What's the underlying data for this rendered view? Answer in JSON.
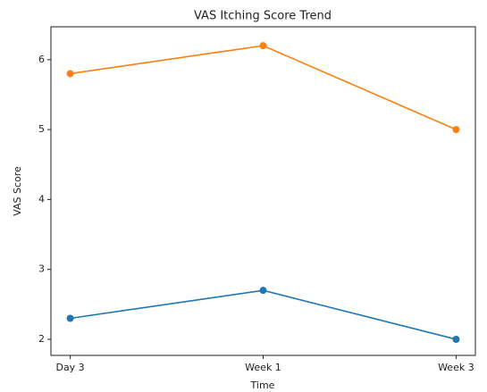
{
  "chart_data": {
    "type": "line",
    "title": "VAS Itching Score Trend",
    "x_label": "Time",
    "y_label": "VAS Score",
    "categories": [
      "Day 3",
      "Week 1",
      "Week 3"
    ],
    "series": [
      {
        "color": "#ff7f0e",
        "values": [
          5.8,
          6.2,
          5.0
        ]
      },
      {
        "color": "#1f77b4",
        "values": [
          2.3,
          2.7,
          2.0
        ]
      }
    ],
    "ylim": [
      1.77,
      6.47
    ],
    "yticks": [
      2,
      3,
      4,
      5,
      6
    ],
    "grid": false
  }
}
